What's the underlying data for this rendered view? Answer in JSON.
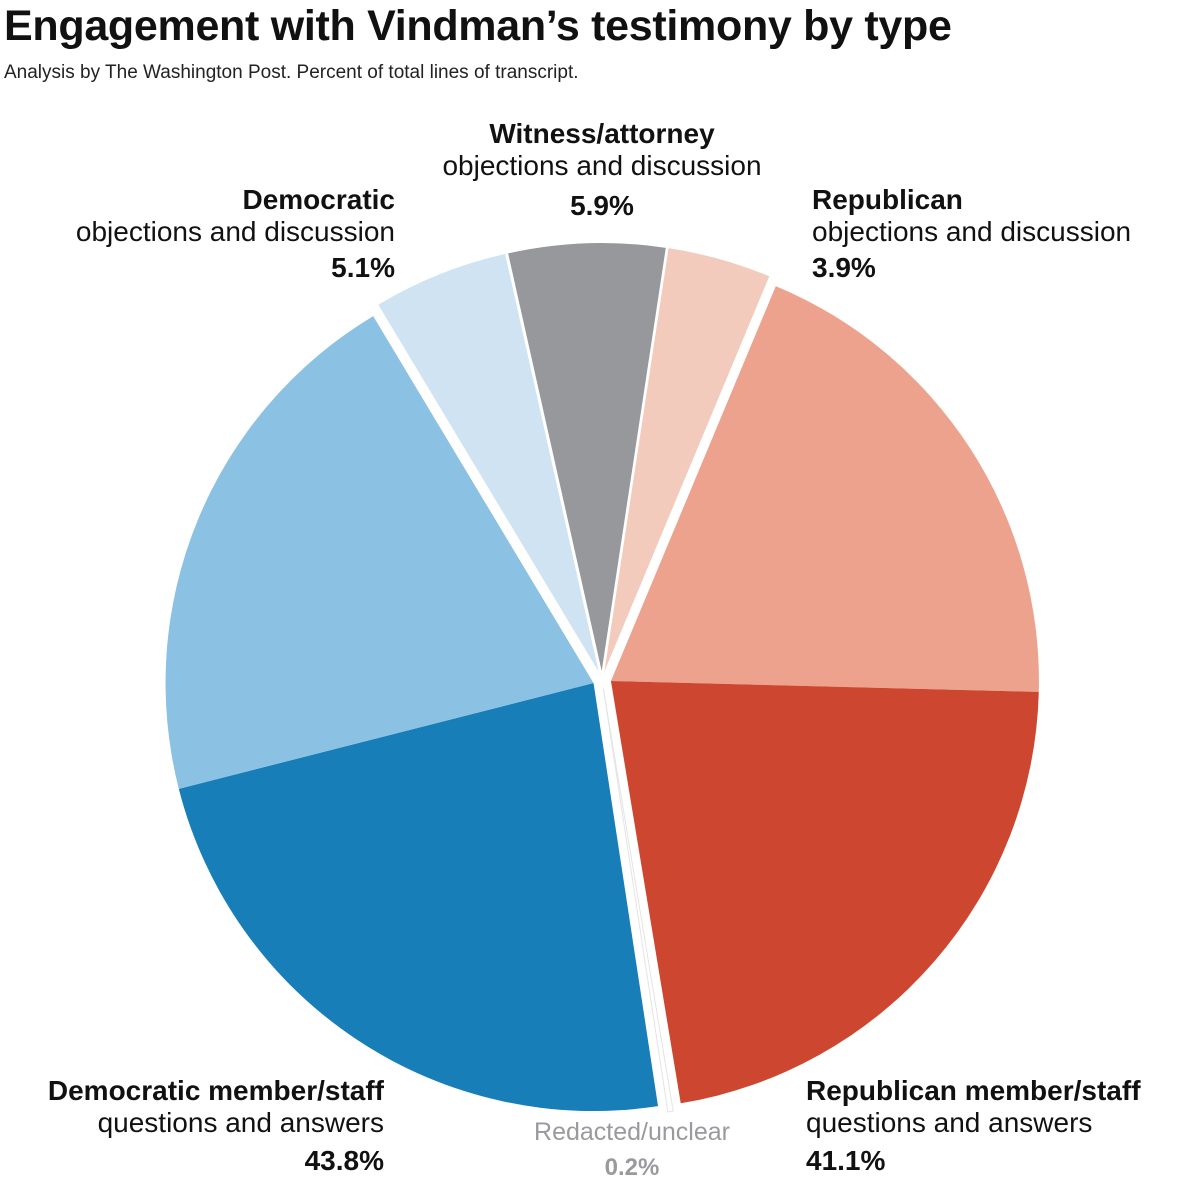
{
  "header": {
    "title": "Engagement with Vindman’s testimony by type",
    "subtitle": "Analysis by The Washington Post. Percent of total lines of transcript."
  },
  "chart_data": {
    "type": "pie",
    "title": "Engagement with Vindman’s testimony by type",
    "subtitle": "Analysis by The Washington Post. Percent of total lines of transcript.",
    "slices": [
      {
        "group": "Witness/attorney",
        "detail": "objections and discussion",
        "percent_label": "5.9%",
        "value": 5.9,
        "color": "#97989c",
        "exploded": true
      },
      {
        "group": "Republican",
        "detail": "objections and discussion",
        "percent_label": "3.9%",
        "value": 3.9,
        "color": "#f2cbbc",
        "exploded": true
      },
      {
        "group": "Republican member/staff",
        "detail": "questions and answers",
        "percent_label": "41.1%",
        "value": 41.1,
        "color": "#cd4630",
        "light_color": "#eda28e",
        "exploded": true
      },
      {
        "group": "Redacted/unclear",
        "detail": "",
        "percent_label": "0.2%",
        "value": 0.2,
        "color": "#ffffff",
        "exploded": true
      },
      {
        "group": "Democratic member/staff",
        "detail": "questions and answers",
        "percent_label": "43.8%",
        "value": 43.8,
        "color": "#187eb8",
        "light_color": "#8bc2e3",
        "exploded": true
      },
      {
        "group": "Democratic",
        "detail": "objections and discussion",
        "percent_label": "5.1%",
        "value": 5.1,
        "color": "#cfe3f2",
        "exploded": true
      }
    ]
  }
}
